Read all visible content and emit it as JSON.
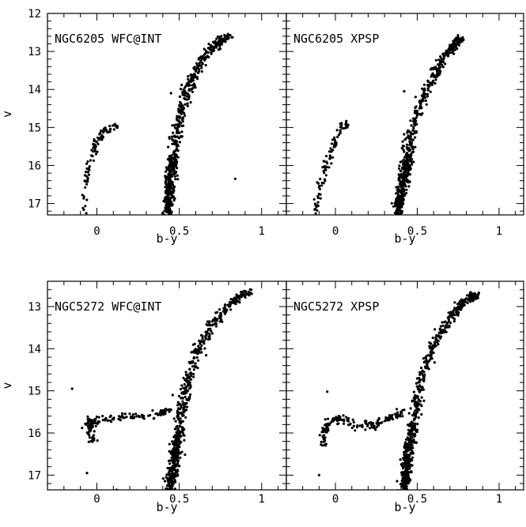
{
  "chart_data": [
    {
      "type": "scatter",
      "title": "NGC6205 WFC@INT",
      "xlabel": "b-y",
      "ylabel": "v",
      "xlim": [
        -0.3,
        1.15
      ],
      "ylim": [
        12.0,
        17.3
      ],
      "y_inverted": true,
      "x_ticks": [
        "0",
        "0.5",
        "1"
      ],
      "y_ticks": [
        "12",
        "13",
        "14",
        "15",
        "16",
        "17"
      ],
      "features": {
        "hb": [
          [
            -0.09,
            17.3
          ],
          [
            -0.08,
            16.95
          ],
          [
            -0.07,
            16.6
          ],
          [
            -0.06,
            16.3
          ],
          [
            -0.05,
            16.05
          ],
          [
            -0.03,
            15.75
          ],
          [
            -0.01,
            15.55
          ],
          [
            0.0,
            15.4
          ],
          [
            0.02,
            15.25
          ],
          [
            0.04,
            15.1
          ],
          [
            0.07,
            15.0
          ],
          [
            0.1,
            14.97
          ],
          [
            0.13,
            14.95
          ]
        ],
        "rgb": [
          [
            0.43,
            17.3
          ],
          [
            0.44,
            16.8
          ],
          [
            0.45,
            16.3
          ],
          [
            0.46,
            15.8
          ],
          [
            0.48,
            15.3
          ],
          [
            0.5,
            14.8
          ],
          [
            0.53,
            14.3
          ],
          [
            0.57,
            13.8
          ],
          [
            0.62,
            13.4
          ],
          [
            0.68,
            13.0
          ],
          [
            0.74,
            12.75
          ],
          [
            0.8,
            12.6
          ]
        ],
        "outliers": [
          [
            0.84,
            16.35
          ],
          [
            0.45,
            14.1
          ]
        ]
      }
    },
    {
      "type": "scatter",
      "title": "NGC6205 XPSP",
      "xlabel": "b-y",
      "ylabel": "",
      "xlim": [
        -0.3,
        1.15
      ],
      "ylim": [
        12.0,
        17.3
      ],
      "y_inverted": true,
      "x_ticks": [
        "0",
        "0.5",
        "1"
      ],
      "y_ticks": [],
      "features": {
        "hb": [
          [
            -0.12,
            17.3
          ],
          [
            -0.11,
            16.9
          ],
          [
            -0.09,
            16.5
          ],
          [
            -0.07,
            16.2
          ],
          [
            -0.05,
            15.9
          ],
          [
            -0.03,
            15.65
          ],
          [
            -0.01,
            15.45
          ],
          [
            0.0,
            15.3
          ],
          [
            0.02,
            15.1
          ],
          [
            0.05,
            14.97
          ],
          [
            0.08,
            14.93
          ]
        ],
        "rgb": [
          [
            0.38,
            17.3
          ],
          [
            0.4,
            16.8
          ],
          [
            0.42,
            16.3
          ],
          [
            0.44,
            15.8
          ],
          [
            0.46,
            15.3
          ],
          [
            0.49,
            14.8
          ],
          [
            0.53,
            14.3
          ],
          [
            0.58,
            13.8
          ],
          [
            0.63,
            13.4
          ],
          [
            0.69,
            13.0
          ],
          [
            0.74,
            12.75
          ],
          [
            0.77,
            12.65
          ]
        ],
        "outliers": [
          [
            0.42,
            14.05
          ],
          [
            0.49,
            14.2
          ]
        ]
      }
    },
    {
      "type": "scatter",
      "title": "NGC5272 WFC@INT",
      "xlabel": "b-y",
      "ylabel": "v",
      "xlim": [
        -0.3,
        1.15
      ],
      "ylim": [
        12.4,
        17.35
      ],
      "y_inverted": true,
      "x_ticks": [
        "0",
        "0.5",
        "1"
      ],
      "y_ticks": [
        "13",
        "14",
        "15",
        "16",
        "17"
      ],
      "features": {
        "hb": [
          [
            -0.02,
            16.25
          ],
          [
            -0.04,
            16.0
          ],
          [
            -0.05,
            15.75
          ],
          [
            0.0,
            15.7
          ],
          [
            0.1,
            15.65
          ],
          [
            0.2,
            15.62
          ],
          [
            0.3,
            15.6
          ],
          [
            0.38,
            15.55
          ],
          [
            0.44,
            15.5
          ]
        ],
        "rgb": [
          [
            0.44,
            17.35
          ],
          [
            0.46,
            16.9
          ],
          [
            0.48,
            16.4
          ],
          [
            0.5,
            15.9
          ],
          [
            0.52,
            15.4
          ],
          [
            0.54,
            14.9
          ],
          [
            0.58,
            14.4
          ],
          [
            0.63,
            13.9
          ],
          [
            0.69,
            13.5
          ],
          [
            0.77,
            13.1
          ],
          [
            0.85,
            12.8
          ],
          [
            0.92,
            12.65
          ]
        ],
        "outliers": [
          [
            -0.15,
            14.95
          ],
          [
            -0.06,
            16.95
          ],
          [
            0.46,
            15.1
          ],
          [
            0.12,
            17.35
          ]
        ]
      }
    },
    {
      "type": "scatter",
      "title": "NGC5272 XPSP",
      "xlabel": "b-y",
      "ylabel": "",
      "xlim": [
        -0.3,
        1.15
      ],
      "ylim": [
        12.4,
        17.35
      ],
      "y_inverted": true,
      "x_ticks": [
        "0",
        "0.5",
        "1"
      ],
      "y_ticks": [],
      "features": {
        "hb": [
          [
            -0.07,
            16.3
          ],
          [
            -0.07,
            16.05
          ],
          [
            -0.05,
            15.8
          ],
          [
            0.0,
            15.7
          ],
          [
            0.05,
            15.7
          ],
          [
            0.15,
            15.8
          ],
          [
            0.22,
            15.85
          ],
          [
            0.3,
            15.7
          ],
          [
            0.36,
            15.6
          ],
          [
            0.42,
            15.5
          ]
        ],
        "rgb": [
          [
            0.42,
            17.35
          ],
          [
            0.43,
            16.9
          ],
          [
            0.45,
            16.4
          ],
          [
            0.47,
            15.9
          ],
          [
            0.49,
            15.4
          ],
          [
            0.51,
            14.9
          ],
          [
            0.55,
            14.4
          ],
          [
            0.6,
            13.9
          ],
          [
            0.66,
            13.5
          ],
          [
            0.73,
            13.1
          ],
          [
            0.8,
            12.85
          ],
          [
            0.87,
            12.7
          ]
        ],
        "outliers": [
          [
            -0.05,
            15.02
          ],
          [
            -0.1,
            17.0
          ],
          [
            0.42,
            15.45
          ],
          [
            0.41,
            15.6
          ]
        ]
      }
    }
  ]
}
